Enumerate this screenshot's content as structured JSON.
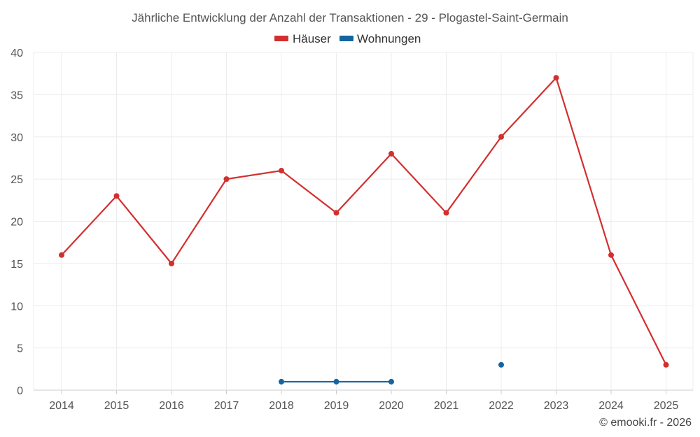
{
  "chart_data": {
    "type": "line",
    "title": "Jährliche Entwicklung der Anzahl der Transaktionen - 29 - Plogastel-Saint-Germain",
    "categories": [
      "2014",
      "2015",
      "2016",
      "2017",
      "2018",
      "2019",
      "2020",
      "2021",
      "2022",
      "2023",
      "2024",
      "2025"
    ],
    "ylim": [
      0,
      40
    ],
    "yticks": [
      0,
      5,
      10,
      15,
      20,
      25,
      30,
      35,
      40
    ],
    "grid": true,
    "legend_position": "top-center",
    "series": [
      {
        "name": "Häuser",
        "color": "#d32f2f",
        "values": [
          16,
          23,
          15,
          25,
          26,
          21,
          28,
          21,
          30,
          37,
          16,
          3
        ]
      },
      {
        "name": "Wohnungen",
        "color": "#1565a0",
        "values": [
          null,
          null,
          null,
          null,
          1,
          1,
          1,
          null,
          3,
          null,
          null,
          null
        ]
      }
    ]
  },
  "credit": "© emooki.fr - 2026"
}
